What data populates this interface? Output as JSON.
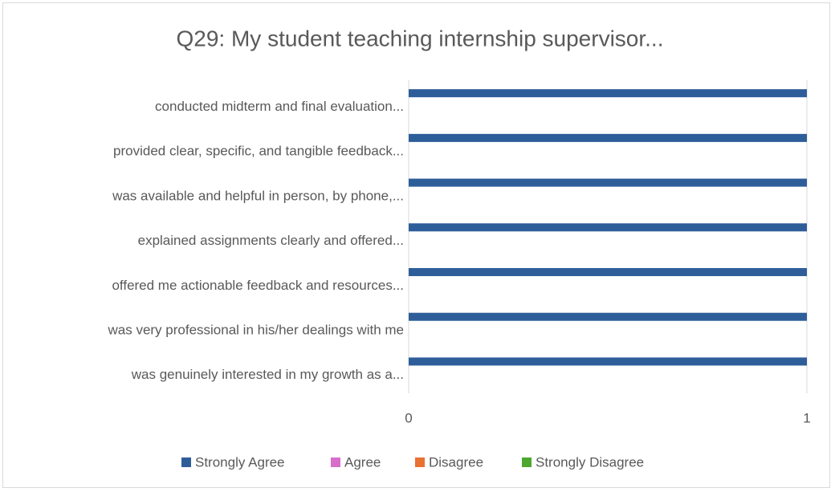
{
  "chart_data": {
    "type": "bar",
    "orientation": "horizontal",
    "title": "Q29: My student teaching internship supervisor...",
    "categories": [
      "conducted midterm and final evaluation...",
      "provided clear, specific, and tangible feedback...",
      "was available and helpful in person, by phone,...",
      "explained assignments clearly and offered...",
      "offered me actionable feedback and resources...",
      "was very professional in his/her dealings with me",
      "was genuinely interested in my growth as a..."
    ],
    "series": [
      {
        "name": "Strongly Agree",
        "color": "#2e5e9a",
        "values": [
          1,
          1,
          1,
          1,
          1,
          1,
          1
        ]
      },
      {
        "name": "Agree",
        "color": "#d86ecc",
        "values": [
          0,
          0,
          0,
          0,
          0,
          0,
          0
        ]
      },
      {
        "name": "Disagree",
        "color": "#e97132",
        "values": [
          0,
          0,
          0,
          0,
          0,
          0,
          0
        ]
      },
      {
        "name": "Strongly Disagree",
        "color": "#4ea72e",
        "values": [
          0,
          0,
          0,
          0,
          0,
          0,
          0
        ]
      }
    ],
    "xlim": [
      0,
      1
    ],
    "xticks": [
      0,
      1
    ],
    "grid": true,
    "legend": "bottom"
  }
}
